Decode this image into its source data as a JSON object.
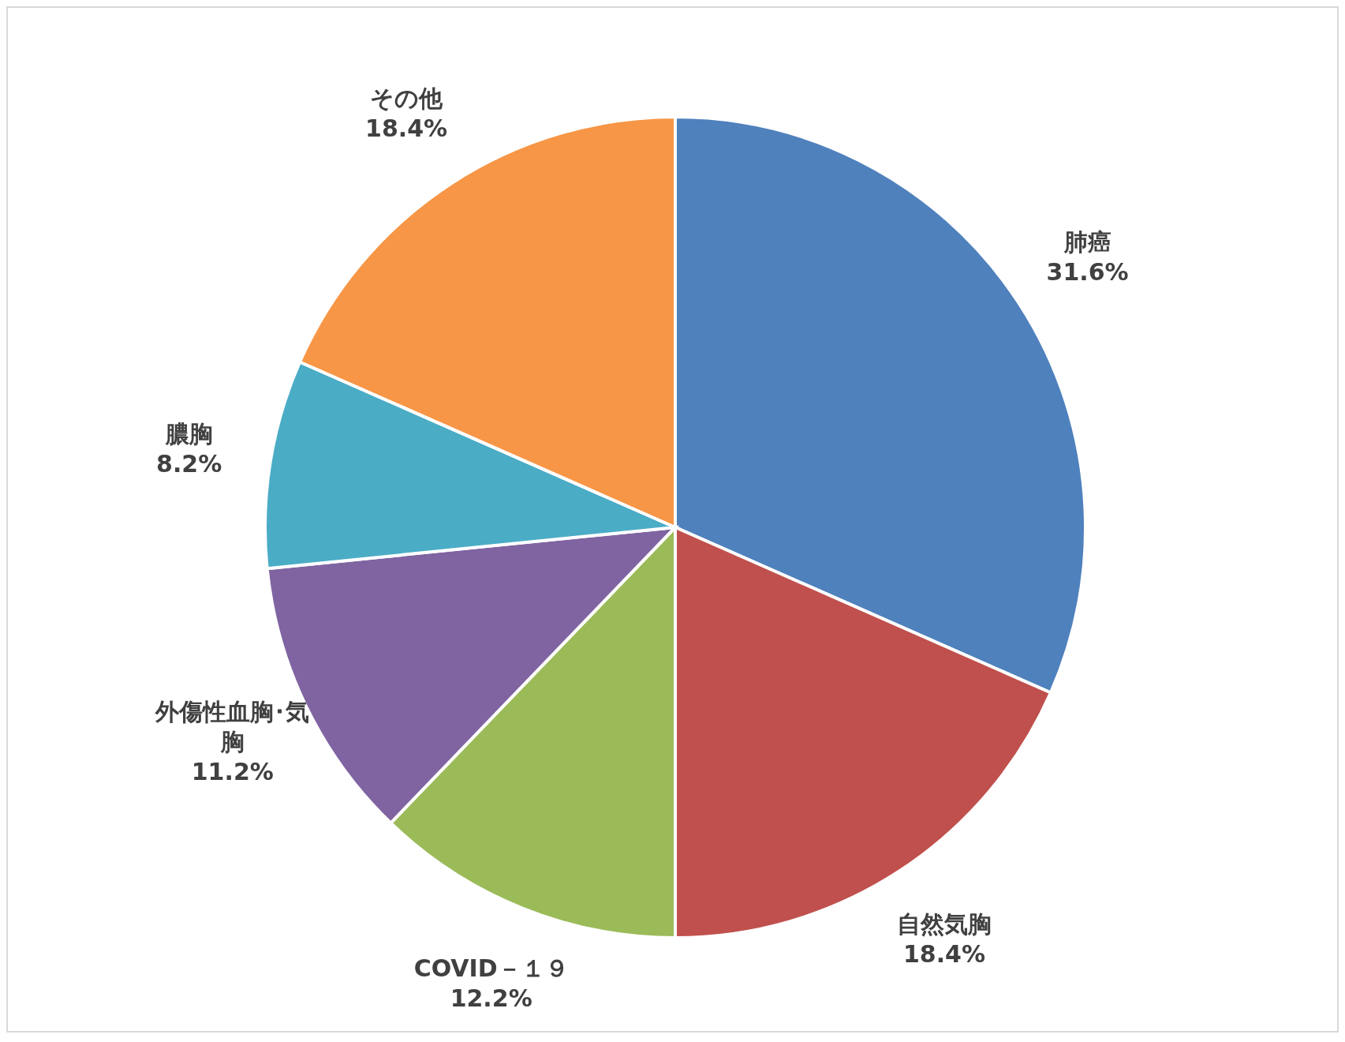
{
  "chart_data": {
    "type": "pie",
    "categories": [
      "肺癌",
      "自然気胸",
      "COVID－１９",
      "外傷性血胸･気胸",
      "膿胸",
      "その他"
    ],
    "values": [
      31.6,
      18.4,
      12.2,
      11.2,
      8.2,
      18.4
    ],
    "colors": [
      "#4f81bd",
      "#c0504d",
      "#9bbb59",
      "#8064a2",
      "#4bacc6",
      "#f79646"
    ],
    "value_labels": [
      "31.6%",
      "18.4%",
      "12.2%",
      "11.2%",
      "8.2%",
      "18.4%"
    ]
  }
}
